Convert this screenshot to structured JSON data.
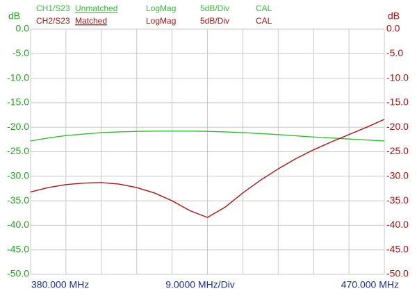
{
  "chart_data": {
    "type": "line",
    "ylabel": "dB",
    "y2label": "dB",
    "x_div_label": "9.0000 MHz/Div",
    "x": [
      380,
      384.5,
      389,
      393.5,
      398,
      402.5,
      407,
      411.5,
      416,
      420.5,
      425,
      429.5,
      434,
      438.5,
      443,
      447.5,
      452,
      456.5,
      461,
      465.5,
      470
    ],
    "xlim": [
      380,
      470
    ],
    "xticks": [
      {
        "value": 380,
        "label": "380.000 MHz"
      },
      389,
      398,
      407,
      416,
      425,
      434,
      443,
      452,
      461,
      {
        "value": 470,
        "label": "470.000 MHz"
      }
    ],
    "ylim": [
      -50,
      0
    ],
    "yticks": [
      {
        "value": 0,
        "label": "0.0"
      },
      {
        "value": -5,
        "label": "-5.0"
      },
      {
        "value": -10,
        "label": "-10.0"
      },
      {
        "value": -15,
        "label": "-15.0"
      },
      {
        "value": -20,
        "label": "-20.0"
      },
      {
        "value": -25,
        "label": "-25.0"
      },
      {
        "value": -30,
        "label": "-30.0"
      },
      {
        "value": -35,
        "label": "-35.0"
      },
      {
        "value": -40,
        "label": "-40.0"
      },
      {
        "value": -45,
        "label": "-45.0"
      },
      {
        "value": -50,
        "label": "-50.0"
      }
    ],
    "y2lim": [
      -50,
      0
    ],
    "y2ticks": [
      {
        "value": 0,
        "label": "0.0"
      },
      {
        "value": -5,
        "label": "-5.0"
      },
      {
        "value": -10,
        "label": "-10.0"
      },
      {
        "value": -15,
        "label": "-15.0"
      },
      {
        "value": -20,
        "label": "-20.0"
      },
      {
        "value": -25,
        "label": "-25.0"
      },
      {
        "value": -30,
        "label": "-30.0"
      },
      {
        "value": -35,
        "label": "-35.0"
      },
      {
        "value": -40,
        "label": "-40.0"
      },
      {
        "value": -45,
        "label": "-45.0"
      },
      {
        "value": -50,
        "label": "-50.0"
      }
    ],
    "grid": true,
    "axis_colors": {
      "y": "#22a022",
      "y2": "#a01010"
    },
    "series": [
      {
        "name": "Unmatched",
        "channel": "CH1/S23",
        "format": "LogMag",
        "scale": "5dB/Div",
        "status": "CAL",
        "color": "#33bb33",
        "values": [
          -22.8,
          -22.2,
          -21.7,
          -21.4,
          -21.1,
          -20.95,
          -20.85,
          -20.8,
          -20.8,
          -20.8,
          -20.85,
          -20.95,
          -21.1,
          -21.3,
          -21.5,
          -21.75,
          -22.0,
          -22.2,
          -22.4,
          -22.6,
          -22.8
        ]
      },
      {
        "name": "Matched",
        "channel": "CH2/S23",
        "format": "LogMag",
        "scale": "5dB/Div",
        "status": "CAL",
        "color": "#aa1111",
        "axis": "y2",
        "values": [
          -33.2,
          -32.3,
          -31.7,
          -31.4,
          -31.3,
          -31.6,
          -32.3,
          -33.4,
          -35.0,
          -37.0,
          -38.4,
          -36.3,
          -33.4,
          -30.8,
          -28.5,
          -26.4,
          -24.6,
          -23.0,
          -21.5,
          -20.0,
          -18.4
        ]
      }
    ]
  }
}
